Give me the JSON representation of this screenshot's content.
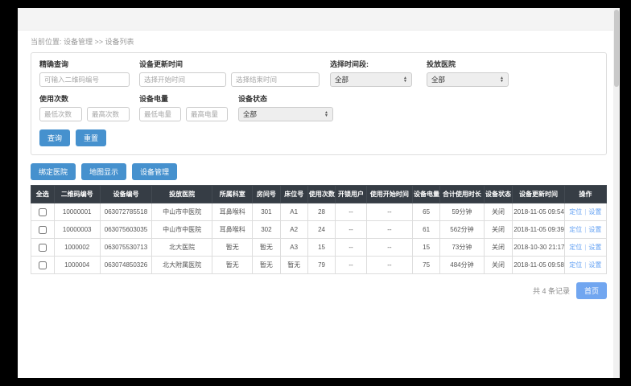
{
  "page": {
    "breadcrumb": "当前位置: 设备管理 >> 设备列表"
  },
  "filters": {
    "precise_query": {
      "label": "精确查询",
      "placeholder": "可输入二维码编号"
    },
    "update_time": {
      "label": "设备更新时间",
      "start_placeholder": "选择开始时间",
      "end_placeholder": "选择结束时间"
    },
    "time_range": {
      "label": "选择时间段:",
      "value": "全部"
    },
    "hospital": {
      "label": "投放医院",
      "value": "全部"
    },
    "usage_count": {
      "label": "使用次数",
      "min_placeholder": "最低次数",
      "max_placeholder": "最高次数"
    },
    "battery": {
      "label": "设备电量",
      "min_placeholder": "最低电量",
      "max_placeholder": "最高电量"
    },
    "device_status": {
      "label": "设备状态",
      "value": "全部"
    },
    "search_label": "查询",
    "reset_label": "重置"
  },
  "toolbar": {
    "bind_hospital": "绑定医院",
    "map_display": "地图显示",
    "device_manage": "设备管理"
  },
  "table": {
    "headers": [
      "全选",
      "二维码编号",
      "设备编号",
      "投放医院",
      "所属科室",
      "房间号",
      "床位号",
      "使用次数",
      "开锁用户",
      "使用开始时间",
      "设备电量",
      "合计使用时长",
      "设备状态",
      "设备更新时间",
      "操作"
    ],
    "rows": [
      [
        "10000001",
        "063072785518",
        "中山市中医院",
        "耳鼻喉科",
        "301",
        "A1",
        "28",
        "--",
        "--",
        "65",
        "59分钟",
        "关闭",
        "2018-11-05 09:54"
      ],
      [
        "10000003",
        "063075603035",
        "中山市中医院",
        "耳鼻喉科",
        "302",
        "A2",
        "24",
        "--",
        "--",
        "61",
        "562分钟",
        "关闭",
        "2018-11-05 09:39"
      ],
      [
        "1000002",
        "063075530713",
        "北大医院",
        "暂无",
        "暂无",
        "A3",
        "15",
        "--",
        "--",
        "15",
        "73分钟",
        "关闭",
        "2018-10-30 21:17"
      ],
      [
        "1000004",
        "063074850326",
        "北大附属医院",
        "暂无",
        "暂无",
        "暂无",
        "79",
        "--",
        "--",
        "75",
        "484分钟",
        "关闭",
        "2018-11-05 09:58"
      ]
    ],
    "actions": {
      "locate": "定位",
      "separator": "|",
      "settings": "设置"
    }
  },
  "footer": {
    "record_count": "共 4 条记录",
    "first_page": "首页"
  },
  "colors": {
    "primary_button": "#4691ce",
    "pagination_button": "#71a6f0",
    "table_header_bg": "#363d45",
    "link": "#64a2f3"
  }
}
